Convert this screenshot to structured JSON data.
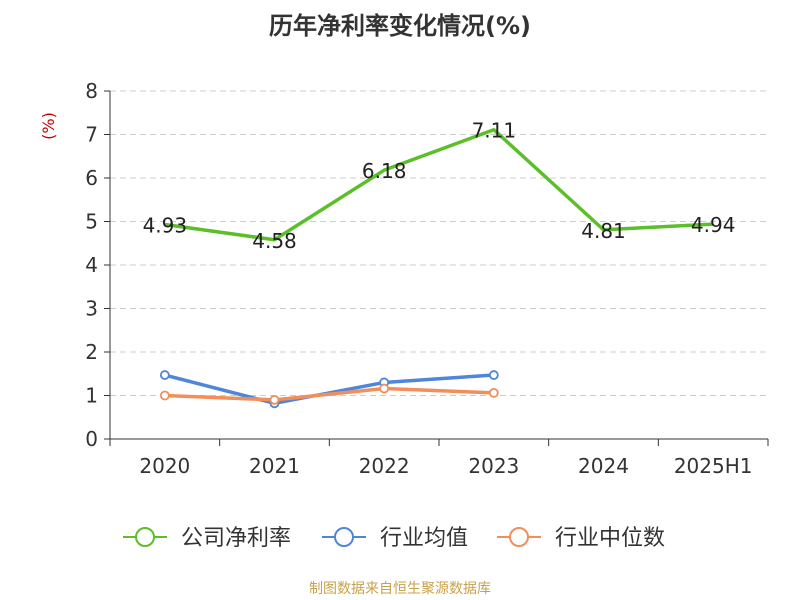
{
  "chart_data": {
    "type": "line",
    "title": "历年净利率变化情况(%)",
    "ylabel": "(%)",
    "xlabel": "",
    "categories": [
      "2020",
      "2021",
      "2022",
      "2023",
      "2024",
      "2025H1"
    ],
    "ylim": [
      0,
      8
    ],
    "yticks": [
      "0",
      "1",
      "2",
      "3",
      "4",
      "5",
      "6",
      "7",
      "8"
    ],
    "grid": true,
    "legend_position": "bottom",
    "series": [
      {
        "name": "公司净利率",
        "color": "#5cbf2a",
        "values": [
          4.93,
          4.58,
          6.18,
          7.11,
          4.81,
          4.94
        ],
        "labels": [
          "4.93",
          "4.58",
          "6.18",
          "7.11",
          "4.81",
          "4.94"
        ],
        "show_markers": false
      },
      {
        "name": "行业均值",
        "color": "#4f86d9",
        "values": [
          1.47,
          0.82,
          1.3,
          1.47,
          null,
          null
        ],
        "show_markers": true
      },
      {
        "name": "行业中位数",
        "color": "#f28e5b",
        "values": [
          1.0,
          0.9,
          1.16,
          1.06,
          null,
          null
        ],
        "show_markers": true
      }
    ],
    "colors": {
      "axis": "#333333",
      "grid": "#cccccc",
      "ylabel": "#cc0000"
    }
  },
  "footer": {
    "source": "制图数据来自恒生聚源数据库"
  }
}
